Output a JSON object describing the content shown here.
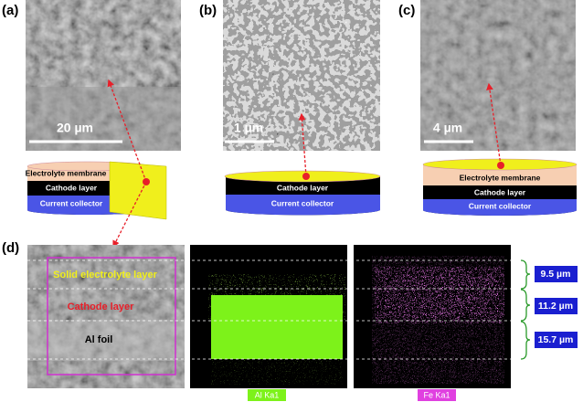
{
  "panels": [
    {
      "label": "(a)",
      "scale_bar": "20 µm",
      "layers": [
        "Electrolyte membrane",
        "Cathode layer",
        "Current collector"
      ]
    },
    {
      "label": "(b)",
      "scale_bar": "1 µm",
      "layers": [
        "Cathode layer",
        "Current collector"
      ]
    },
    {
      "label": "(c)",
      "scale_bar": "4 µm",
      "layers": [
        "Electrolyte membrane",
        "Cathode layer",
        "Current collector"
      ]
    }
  ],
  "panel_d": {
    "label": "(d)",
    "layers": [
      "Solid electrolyte layer",
      "Cathode layer",
      "Al foil"
    ],
    "maps": [
      "Al Ka1",
      "Fe Ka1"
    ],
    "thicknesses": [
      "9.5 µm",
      "11.2 µm",
      "15.7 µm"
    ]
  }
}
